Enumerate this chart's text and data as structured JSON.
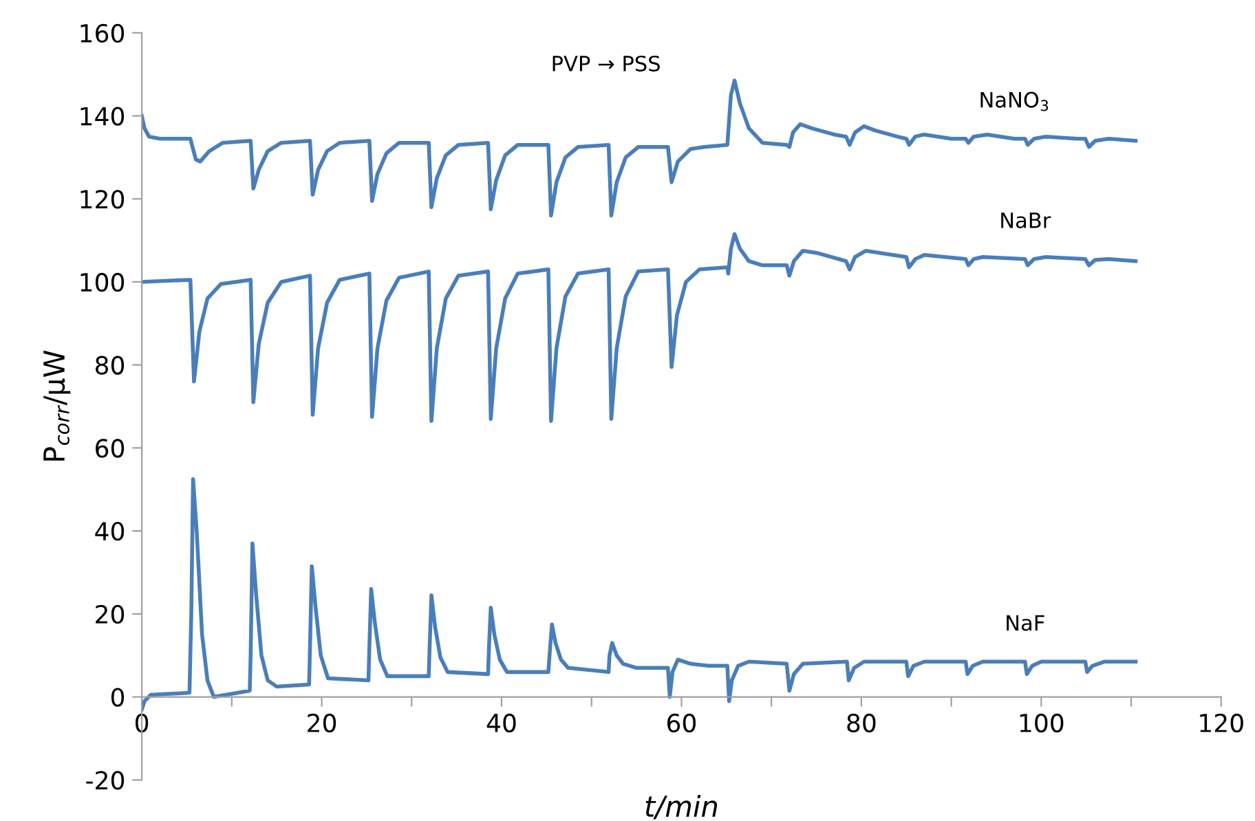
{
  "chart_data": {
    "type": "line",
    "xlabel": "t/min",
    "ylabel": "P$_{corr}$/µW",
    "annotations": [
      "PVP → PSS"
    ],
    "xlim": [
      0,
      120
    ],
    "ylim": [
      -20,
      160
    ],
    "xticks": [
      0,
      {
        "value": 10,
        "label": null
      },
      20,
      {
        "value": 30,
        "label": null
      },
      40,
      {
        "value": 50,
        "label": null
      },
      60,
      {
        "value": 70,
        "label": null
      },
      80,
      {
        "value": 90,
        "label": null
      },
      100,
      {
        "value": 110,
        "label": null
      },
      120
    ],
    "yticks": [
      -20,
      0,
      20,
      40,
      60,
      80,
      100,
      120,
      140,
      160
    ],
    "grid": false,
    "legend": false,
    "marker": "none",
    "line_style": "solid",
    "series": [
      {
        "name": "NaNO$_{3}$",
        "color": "#4a7ebb",
        "x": [
          0,
          0.3,
          0.8,
          2,
          5.4,
          6,
          6.5,
          7.5,
          9,
          12.1,
          12.4,
          13,
          14,
          15.5,
          18.7,
          19,
          19.6,
          20.6,
          22,
          25.3,
          25.6,
          26.2,
          27.2,
          28.6,
          31.9,
          32.2,
          32.8,
          33.8,
          35.2,
          38.5,
          38.8,
          39.4,
          40.4,
          41.8,
          45.2,
          45.5,
          46.1,
          47.1,
          48.5,
          51.9,
          52.2,
          52.8,
          53.8,
          55.2,
          58.5,
          58.9,
          59.6,
          61,
          62.5,
          65.1,
          65.5,
          65.9,
          66.5,
          67.5,
          69,
          71.7,
          72,
          72.4,
          73.2,
          74.5,
          77,
          78.3,
          78.7,
          79.3,
          80.3,
          81.5,
          84,
          85,
          85.3,
          86,
          87,
          90,
          91.6,
          91.9,
          92.5,
          94,
          97,
          98.2,
          98.5,
          99.2,
          100.5,
          104,
          104.9,
          105.3,
          106,
          107.5,
          110.5
        ],
        "values": [
          140,
          137,
          135,
          134.5,
          134.5,
          129.5,
          129,
          131.5,
          133.5,
          134,
          122.5,
          127,
          131.5,
          133.5,
          134,
          121,
          127,
          131.5,
          133.5,
          134,
          119.5,
          126,
          131,
          133.5,
          133.5,
          118,
          125,
          130.5,
          133,
          133.5,
          117.5,
          124.5,
          130.5,
          133,
          133,
          116,
          124,
          130,
          132.5,
          133,
          116,
          124,
          130,
          132.5,
          132.5,
          124,
          129,
          132,
          132.5,
          133,
          145,
          148.5,
          143,
          137,
          133.5,
          133,
          132.5,
          136,
          138,
          137,
          135.5,
          135,
          133,
          136,
          137.5,
          136.5,
          135,
          134.5,
          133,
          135,
          135.5,
          134.5,
          134.5,
          133.5,
          135,
          135.5,
          134.5,
          134.5,
          133,
          134.5,
          135,
          134.5,
          134.5,
          132.5,
          134,
          134.5,
          134
        ]
      },
      {
        "name": "NaBr",
        "color": "#4a7ebb",
        "x": [
          0,
          5.4,
          5.8,
          6.4,
          7.3,
          8.8,
          12.1,
          12.4,
          13,
          14,
          15.5,
          18.7,
          19,
          19.6,
          20.6,
          22,
          25.3,
          25.6,
          26.2,
          27.2,
          28.6,
          31.9,
          32.2,
          32.8,
          33.8,
          35.2,
          38.5,
          38.8,
          39.4,
          40.4,
          41.8,
          45.2,
          45.5,
          46.1,
          47.1,
          48.5,
          51.9,
          52.2,
          52.8,
          53.8,
          55.2,
          58.5,
          58.9,
          59.5,
          60.5,
          62,
          65.1,
          65.2,
          65.5,
          65.9,
          66.5,
          67.5,
          69,
          71.7,
          72,
          72.5,
          73.5,
          75,
          78.3,
          78.7,
          79.3,
          80.5,
          82,
          85,
          85.3,
          86,
          87,
          91.6,
          91.9,
          92.5,
          93.5,
          98.2,
          98.5,
          99.2,
          100.5,
          104.9,
          105.3,
          106,
          107.5,
          110.5
        ],
        "values": [
          100,
          100.5,
          76,
          88,
          96,
          99.5,
          100.5,
          71,
          85,
          95,
          100,
          101.5,
          68,
          84,
          95,
          100.5,
          102,
          67.5,
          84,
          95.5,
          101,
          102.5,
          66.5,
          84,
          96,
          101.5,
          102.5,
          67,
          84,
          96,
          102,
          103,
          66.5,
          84,
          96.5,
          102,
          103,
          67,
          84,
          96.5,
          102.5,
          103,
          79.5,
          92,
          100,
          103,
          103.5,
          102,
          108,
          111.5,
          108,
          105,
          104,
          104,
          101.5,
          105,
          107.5,
          107,
          105,
          103,
          106,
          107.5,
          107,
          106,
          103.5,
          105.5,
          106.5,
          105.5,
          104,
          105.5,
          106,
          105.5,
          104,
          105.5,
          106,
          105.5,
          104,
          105.3,
          105.5,
          105
        ]
      },
      {
        "name": "NaF",
        "color": "#4a7ebb",
        "x": [
          0,
          0.3,
          1,
          5.3,
          5.5,
          5.7,
          6.1,
          6.7,
          7.3,
          8,
          12,
          12.1,
          12.3,
          12.7,
          13.3,
          14,
          15,
          18.6,
          18.7,
          18.9,
          19.3,
          19.9,
          20.7,
          25.2,
          25.3,
          25.5,
          25.9,
          26.5,
          27.3,
          31.9,
          32,
          32.2,
          32.6,
          33.2,
          34,
          38.5,
          38.6,
          38.8,
          39.2,
          39.8,
          40.6,
          45.2,
          45.4,
          45.6,
          46,
          46.6,
          47.4,
          51.9,
          52,
          52.3,
          52.8,
          53.5,
          55,
          58.5,
          58.7,
          59,
          59.6,
          61,
          63,
          65.1,
          65.3,
          65.6,
          66.3,
          67.5,
          71.7,
          72,
          72.5,
          73.5,
          78.4,
          78.6,
          79.2,
          80.3,
          85,
          85.2,
          85.8,
          87,
          91.6,
          91.8,
          92.4,
          93.5,
          98.2,
          98.4,
          99,
          100,
          104.9,
          105.1,
          105.7,
          107,
          110.5
        ],
        "values": [
          -3,
          -1,
          0.5,
          1,
          20,
          52.5,
          40,
          15,
          4,
          0,
          1.5,
          10,
          37,
          25,
          10,
          4,
          2.5,
          3,
          12,
          31.5,
          22,
          10,
          4.5,
          4,
          12,
          26,
          18,
          9,
          5,
          5,
          12,
          24.5,
          17,
          9.5,
          6,
          5.5,
          12,
          21.5,
          15,
          9,
          6,
          6,
          12,
          17.5,
          13,
          9,
          7,
          6,
          10,
          13,
          10,
          8,
          7,
          7,
          0,
          6,
          9,
          8,
          7.5,
          7.5,
          -1,
          4,
          7.5,
          8.5,
          8,
          1.5,
          5.5,
          8,
          8.5,
          4,
          7,
          8.5,
          8.5,
          5,
          7.5,
          8.5,
          8.5,
          5.5,
          7.5,
          8.5,
          8.5,
          5.5,
          7.5,
          8.5,
          8.5,
          6,
          7.5,
          8.5,
          8.5
        ]
      }
    ]
  }
}
